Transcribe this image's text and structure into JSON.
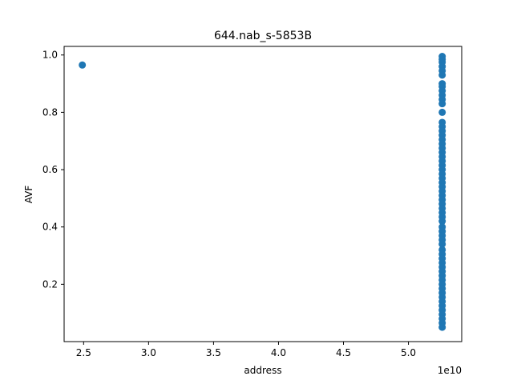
{
  "chart_data": {
    "type": "scatter",
    "title": "644.nab_s-5853B",
    "xlabel": "address",
    "ylabel": "AVF",
    "x_offset_label": "1e10",
    "xlim": [
      2.35,
      5.41
    ],
    "ylim": [
      0.0,
      1.03
    ],
    "x_ticks": [
      2.5,
      3.0,
      3.5,
      4.0,
      4.5,
      5.0
    ],
    "x_tick_labels": [
      "2.5",
      "3.0",
      "3.5",
      "4.0",
      "4.5",
      "5.0"
    ],
    "y_ticks": [
      0.2,
      0.4,
      0.6,
      0.8,
      1.0
    ],
    "y_tick_labels": [
      "0.2",
      "0.4",
      "0.6",
      "0.8",
      "1.0"
    ],
    "grid": false,
    "marker_color": "#1f77b4",
    "series": [
      {
        "points": [
          [
            2.49,
            0.965
          ],
          [
            5.26,
            0.995
          ],
          [
            5.26,
            0.985
          ],
          [
            5.26,
            0.975
          ],
          [
            5.26,
            0.96
          ],
          [
            5.26,
            0.945
          ],
          [
            5.26,
            0.93
          ],
          [
            5.26,
            0.9
          ],
          [
            5.26,
            0.89
          ],
          [
            5.26,
            0.875
          ],
          [
            5.26,
            0.86
          ],
          [
            5.26,
            0.845
          ],
          [
            5.26,
            0.83
          ],
          [
            5.26,
            0.8
          ],
          [
            5.26,
            0.765
          ],
          [
            5.26,
            0.75
          ],
          [
            5.26,
            0.735
          ],
          [
            5.26,
            0.72
          ],
          [
            5.26,
            0.705
          ],
          [
            5.26,
            0.69
          ],
          [
            5.26,
            0.675
          ],
          [
            5.26,
            0.66
          ],
          [
            5.26,
            0.645
          ],
          [
            5.26,
            0.63
          ],
          [
            5.26,
            0.615
          ],
          [
            5.26,
            0.6
          ],
          [
            5.26,
            0.585
          ],
          [
            5.26,
            0.57
          ],
          [
            5.26,
            0.555
          ],
          [
            5.26,
            0.54
          ],
          [
            5.26,
            0.525
          ],
          [
            5.26,
            0.51
          ],
          [
            5.26,
            0.495
          ],
          [
            5.26,
            0.48
          ],
          [
            5.26,
            0.465
          ],
          [
            5.26,
            0.45
          ],
          [
            5.26,
            0.435
          ],
          [
            5.26,
            0.42
          ],
          [
            5.26,
            0.4
          ],
          [
            5.26,
            0.385
          ],
          [
            5.26,
            0.37
          ],
          [
            5.26,
            0.355
          ],
          [
            5.26,
            0.34
          ],
          [
            5.26,
            0.32
          ],
          [
            5.26,
            0.305
          ],
          [
            5.26,
            0.29
          ],
          [
            5.26,
            0.275
          ],
          [
            5.26,
            0.26
          ],
          [
            5.26,
            0.245
          ],
          [
            5.26,
            0.23
          ],
          [
            5.26,
            0.215
          ],
          [
            5.26,
            0.2
          ],
          [
            5.26,
            0.185
          ],
          [
            5.26,
            0.17
          ],
          [
            5.26,
            0.155
          ],
          [
            5.26,
            0.14
          ],
          [
            5.26,
            0.125
          ],
          [
            5.26,
            0.11
          ],
          [
            5.26,
            0.095
          ],
          [
            5.26,
            0.08
          ],
          [
            5.26,
            0.065
          ],
          [
            5.26,
            0.05
          ]
        ]
      }
    ]
  }
}
